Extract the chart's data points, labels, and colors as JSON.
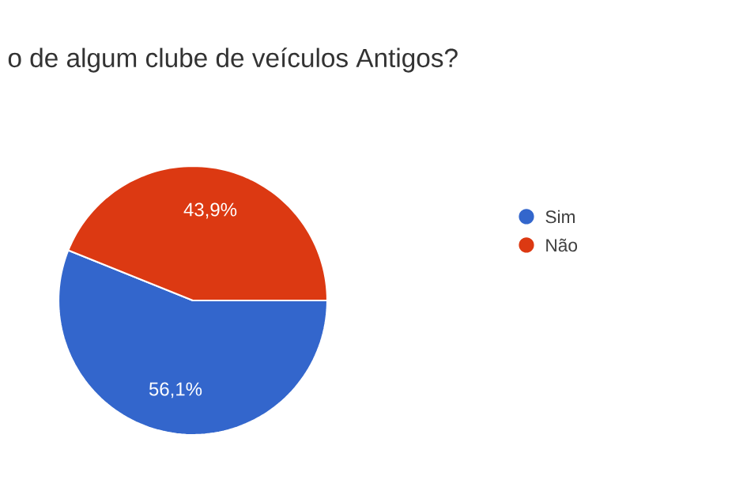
{
  "chart_data": {
    "type": "pie",
    "title": "o de algum clube de veículos Antigos?",
    "categories": [
      "Sim",
      "Não"
    ],
    "values": [
      56.1,
      43.9
    ],
    "colors": [
      "#3366cc",
      "#dc3912"
    ],
    "value_labels": [
      "56,1%",
      "43,9%"
    ],
    "legend": "right"
  }
}
